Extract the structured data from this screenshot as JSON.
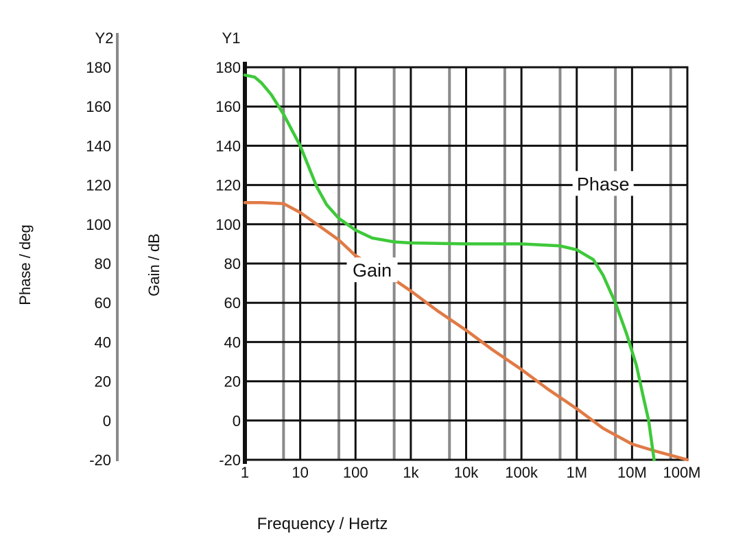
{
  "chart_data": {
    "type": "line",
    "title": "",
    "xlabel": "Frequency / Hertz",
    "x_scale": "log",
    "xlim": [
      1,
      100000000
    ],
    "x_tick_values": [
      1,
      10,
      100,
      1000,
      10000,
      100000,
      1000000,
      10000000,
      100000000
    ],
    "x_tick_labels": [
      "1",
      "10",
      "100",
      "1k",
      "10k",
      "100k",
      "1M",
      "10M",
      "100M"
    ],
    "x_minor_ticks": [
      5,
      50,
      500,
      5000,
      50000,
      500000,
      5000000,
      50000000
    ],
    "y1": {
      "axis_name": "Y1",
      "label": "Gain / dB",
      "ylim": [
        -20,
        180
      ],
      "ticks": [
        -20,
        0,
        20,
        40,
        60,
        80,
        100,
        120,
        140,
        160,
        180
      ]
    },
    "y2": {
      "axis_name": "Y2",
      "label": "Phase / deg",
      "ylim": [
        -20,
        180
      ],
      "ticks": [
        -20,
        0,
        20,
        40,
        60,
        80,
        100,
        120,
        140,
        160,
        180
      ]
    },
    "grid": true,
    "legend": "none",
    "series": [
      {
        "name": "Gain",
        "axis": "y1",
        "color": "#e07a45",
        "label_at": {
          "x": 200,
          "y": 74
        },
        "points": [
          [
            1,
            111
          ],
          [
            2,
            111
          ],
          [
            5,
            110.5
          ],
          [
            10,
            106
          ],
          [
            20,
            100
          ],
          [
            50,
            92
          ],
          [
            100,
            84
          ],
          [
            300,
            76
          ],
          [
            1000,
            66
          ],
          [
            3000,
            56
          ],
          [
            10000,
            46
          ],
          [
            30000,
            36
          ],
          [
            100000,
            26
          ],
          [
            300000,
            16
          ],
          [
            1000000,
            6
          ],
          [
            3000000,
            -4
          ],
          [
            10000000,
            -12
          ],
          [
            30000000,
            -16
          ],
          [
            100000000,
            -20
          ]
        ]
      },
      {
        "name": "Phase",
        "axis": "y2",
        "color": "#3ec93a",
        "label_at": {
          "x": 3000000,
          "y": 118
        },
        "points": [
          [
            1,
            176
          ],
          [
            1.5,
            175
          ],
          [
            2,
            172
          ],
          [
            3,
            166
          ],
          [
            5,
            156
          ],
          [
            10,
            140
          ],
          [
            20,
            119
          ],
          [
            30,
            110
          ],
          [
            50,
            103
          ],
          [
            100,
            97
          ],
          [
            200,
            93
          ],
          [
            500,
            91
          ],
          [
            1000,
            90.5
          ],
          [
            10000,
            90
          ],
          [
            100000,
            90
          ],
          [
            500000,
            89
          ],
          [
            1000000,
            87
          ],
          [
            2000000,
            82
          ],
          [
            3000000,
            74
          ],
          [
            5000000,
            60
          ],
          [
            8000000,
            44
          ],
          [
            12000000,
            28
          ],
          [
            16000000,
            12
          ],
          [
            20000000,
            0
          ],
          [
            25000000,
            -20
          ]
        ]
      }
    ]
  },
  "colors": {
    "grid_major": "#111111",
    "grid_minor": "#8a8a8a",
    "axis_line": "#8a8a8a",
    "text": "#111111"
  }
}
